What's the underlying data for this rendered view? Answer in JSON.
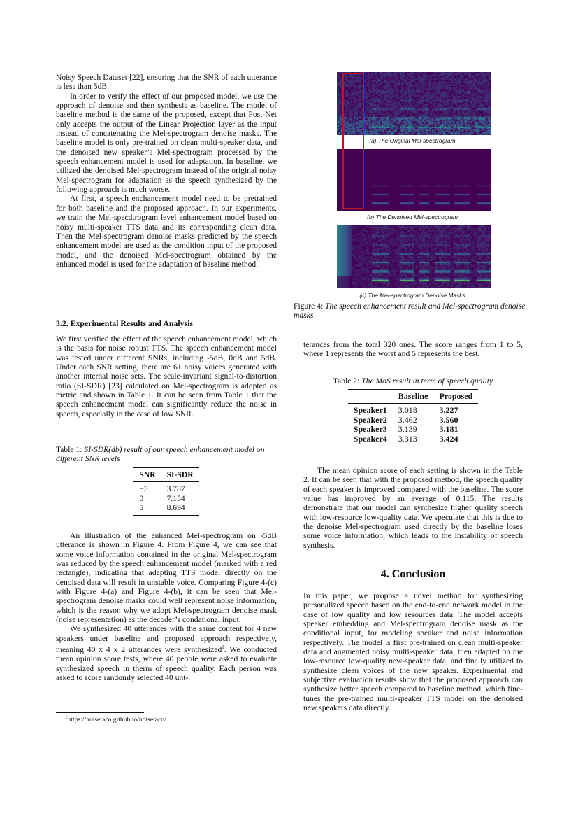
{
  "left": {
    "p1": "Noisy Speech Dataset [22], ensuring that the SNR of each utterance is less than 5dB.",
    "p2": "In order to verify the effect of our proposed model, we use the approach of denoise and then synthesis as baseline. The model of baseline method is the same of the proposed, except that Post-Net only accepts the output of the Linear Projection layer as the input instead of concatenating the Mel-spectrogram denoise masks. The baseline model is only pre-trained on clean multi-speaker data, and the denoised new speaker’s Mel-spectrogram processed by the speech enhancement model is used for adaptation. In baseline, we utilized the denoised Mel-spectrogram instead of the original noisy Mel-spectrogram for adaptation as the speech synthesized by the following approach is much worse.",
    "p3": "At first, a speech enchancement model need to be pretrained for both baseline and the proposed approach. In our experiments, we train the Mel-specdtrogram level enhancement model based on noisy multi-speaker TTS data and its corresponding clean data. Then the Mel-spectrogram denoise masks predicted by the speech enhancement model are used as the condition input of the proposed model, and the denoised Mel-spectrogram obtained by the enhanced model is used for the adaptation of baseline method.",
    "section_heading": "3.2. Experimental Results and Analysis",
    "p4": "We first verified the effect of the speech enhancement model, which is the basis for noise robust TTS. The speech enhancement model was tested under different SNRs, including -5dB, 0dB and 5dB. Under each SNR setting, there are 61 noisy voices generated with another internal noise sets. The scale-invariant signal-to-distortion ratio (SI-SDR) [23] calculated on Mel-spectrogram is adopted as metric and shown in Table 1. It can be seen from Table 1 that the speech enhancement model can significantly reduce the noise in speech, especially in the case of low SNR.",
    "table1": {
      "label": "Table 1:",
      "caption": "SI-SDR(db) result of our speech enhancement model on different SNR levels",
      "headers": [
        "SNR",
        "SI-SDR"
      ],
      "rows": [
        [
          "−5",
          "3.787"
        ],
        [
          "0",
          "7.154"
        ],
        [
          "5",
          "8.694"
        ]
      ]
    },
    "p5": "An illustration of the enhanced Mel-spectrogram on -5dB utterance is shown in Figure 4. From Figure 4, we can see that some voice information contained in the original Mel-spectrogram was reduced by the speech enhancement model (marked with a red rectangle), indicating that adapting TTS model directly on the denoised data will result in unstable voice. Comparing Figure 4-(c) with Figure 4-(a) and Figure 4-(b), it can be seen that Mel-spectrogram denoise masks could well represent noise information, which is the reason why we adopt Mel-spectrogram denoise mask (noise representation) as the decoder’s condational input.",
    "p6": "We synthesized 40 utterances with the same content for 4 new speakers under baseline and proposed approach respectively, meaning 40 x 4 x 2 utterances were synthesized",
    "p6_sup": "1",
    "p6_end": ". We conducted mean opinion score tests, where 40 people were asked to evaluate synthesized speech in therm of speech quality. Each person was asked to score randomly selected 40 unt-",
    "footnote_mark": "1",
    "footnote": "https://noisetaco.github.io/noisetaco/"
  },
  "figure4": {
    "sub_a": "(a) The Original  Mel-spectrogram",
    "sub_b": "(b) The Denoised  Mel-spectrogram",
    "sub_c": "(c) The Mel-spectrogram Denoise Masks",
    "label": "Figure 4:",
    "caption": "The speech enhancement result and Mel-spectrogram denoise masks",
    "colors": {
      "background": "#440154",
      "mid": "#21918c",
      "high": "#fde725",
      "highlight_box": "#c0141c"
    }
  },
  "right": {
    "p1": "terances from the total 320 ones. The score ranges from 1 to 5, where 1 represents the worst and 5 represents the best.",
    "table2": {
      "label": "Table 2:",
      "caption": "The MoS result in term of speech quality",
      "headers": [
        "",
        "Baseline",
        "Proposed"
      ],
      "rows": [
        [
          "Speaker1",
          "3.018",
          "3.227"
        ],
        [
          "Speaker2",
          "3.462",
          "3.560"
        ],
        [
          "Speaker3",
          "3.139",
          "3.181"
        ],
        [
          "Speaker4",
          "3.313",
          "3.424"
        ]
      ]
    },
    "p2": "The mean opinion score of each setting is shown in the Table 2. It can be seen that with the proposed method, the speech quality of each speaker is improved compared with the baseline. The score value has improved by an average of 0.115. The results demonstrate that our model can synthesize higher quality speech with low-resource low-quality data. We speculate that this is due to the denoise Mel-spectrogram used directly by the baseline loses some voice information, which leads to the instability of speech synthesis.",
    "conclusion_heading": "4.  Conclusion",
    "p3": "In this paper, we propose a novel method for synthesizing personalized speech based on the end-to-end network model in the case of low quality and low resources data. The model accepts speaker embedding and Mel-spectrogram denoise mask as the conditional input, for modeling speaker and noise information respectively. The model is first pre-trained on clean multi-speaker data and augmented noisy multi-speaker data, then adapted on the low-resource low-quality new-speaker data, and finally utilized to synthesize clean voices of the new speaker. Experimental and subjective evaluation results show that the proposed approach can synthesize better speech compared to baseline method, which fine-tunes the pre-trained multi-speaker TTS model on the denoised new speakers data directly."
  }
}
